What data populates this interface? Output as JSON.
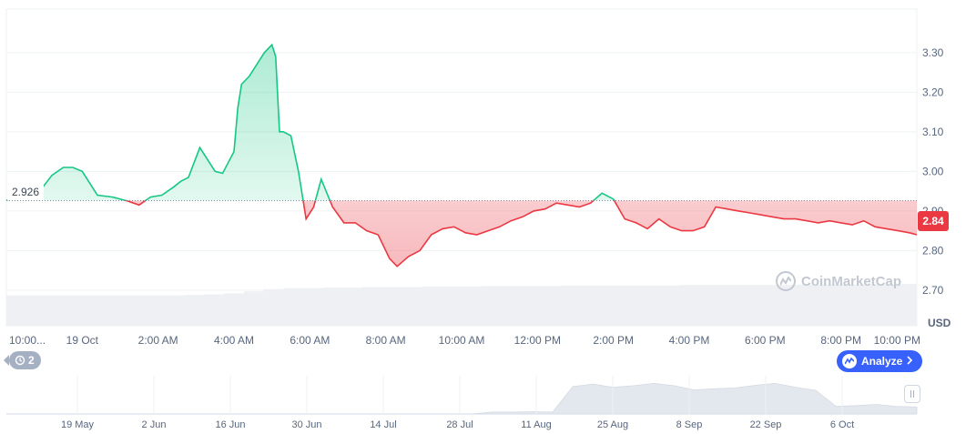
{
  "chart_data": {
    "type": "area",
    "reference_label": "2.926",
    "reference_value": 2.926,
    "current_price_label": "2.84",
    "currency_label": "USD",
    "y_ticks": [
      "3.30",
      "3.20",
      "3.10",
      "3.00",
      "2.90",
      "2.80",
      "2.70"
    ],
    "ylim": [
      2.61,
      3.41
    ],
    "x_ticks": [
      "10:00...",
      "19 Oct",
      "2:00 AM",
      "4:00 AM",
      "6:00 AM",
      "8:00 AM",
      "10:00 AM",
      "12:00 PM",
      "2:00 PM",
      "4:00 PM",
      "6:00 PM",
      "8:00 PM",
      "10:00 PM"
    ],
    "x_tick_hours": [
      0,
      2,
      4,
      6,
      8,
      10,
      12,
      14,
      16,
      18,
      20,
      22,
      24
    ],
    "xlim_hours": [
      0.0,
      24.0
    ],
    "up_color": "#16c784",
    "down_color": "#ea3943",
    "series": [
      {
        "x_hours": [
          0.0,
          0.4,
          0.8,
          1.2,
          1.5,
          1.75,
          2.0,
          2.4,
          2.8,
          3.2,
          3.5,
          3.8,
          4.1,
          4.4,
          4.6,
          4.8,
          5.1,
          5.5,
          5.7,
          6.0,
          6.1,
          6.2,
          6.4,
          6.6,
          6.8,
          7.0,
          7.1,
          7.2,
          7.3,
          7.5,
          7.7,
          7.9,
          8.1,
          8.3,
          8.6,
          8.9,
          9.2,
          9.5,
          9.8,
          10.1,
          10.3,
          10.6,
          10.9,
          11.2,
          11.5,
          11.8,
          12.1,
          12.4,
          12.7,
          13.0,
          13.3,
          13.6,
          13.9,
          14.2,
          14.5,
          14.8,
          15.1,
          15.4,
          15.7,
          16.0,
          16.3,
          16.6,
          16.9,
          17.2,
          17.5,
          17.8,
          18.1,
          18.4,
          18.7,
          19.0,
          19.3,
          19.6,
          19.9,
          20.2,
          20.5,
          20.8,
          21.1,
          21.4,
          21.7,
          22.0,
          22.3,
          22.6,
          22.9,
          23.2,
          23.5,
          23.8,
          24.0
        ],
        "y": [
          2.926,
          2.95,
          2.94,
          2.99,
          3.01,
          3.01,
          3.0,
          2.94,
          2.935,
          2.925,
          2.915,
          2.935,
          2.94,
          2.96,
          2.975,
          2.985,
          3.06,
          3.0,
          2.995,
          3.05,
          3.16,
          3.22,
          3.24,
          3.27,
          3.3,
          3.32,
          3.29,
          3.1,
          3.1,
          3.09,
          3.0,
          2.88,
          2.91,
          2.98,
          2.91,
          2.87,
          2.87,
          2.85,
          2.84,
          2.78,
          2.76,
          2.785,
          2.8,
          2.84,
          2.855,
          2.86,
          2.845,
          2.84,
          2.85,
          2.86,
          2.875,
          2.885,
          2.9,
          2.905,
          2.92,
          2.915,
          2.91,
          2.92,
          2.945,
          2.93,
          2.88,
          2.87,
          2.855,
          2.88,
          2.86,
          2.85,
          2.85,
          2.86,
          2.91,
          2.905,
          2.9,
          2.895,
          2.89,
          2.885,
          2.88,
          2.88,
          2.875,
          2.87,
          2.875,
          2.87,
          2.865,
          2.875,
          2.86,
          2.855,
          2.85,
          2.845,
          2.84
        ]
      }
    ],
    "volume_relative": [
      0.58,
      0.58,
      0.58,
      0.58,
      0.58,
      0.58,
      0.58,
      0.58,
      0.58,
      0.59,
      0.6,
      0.62,
      0.66,
      0.7,
      0.72,
      0.72,
      0.73,
      0.73,
      0.74,
      0.74,
      0.74,
      0.75,
      0.75,
      0.75,
      0.76,
      0.76,
      0.76,
      0.76,
      0.77,
      0.77,
      0.77,
      0.77,
      0.77,
      0.77,
      0.78,
      0.78,
      0.78,
      0.78,
      0.78,
      0.78,
      0.79,
      0.79,
      0.79,
      0.79,
      0.79,
      0.8
    ],
    "navigator": {
      "labels": [
        "19 May",
        "2 Jun",
        "16 Jun",
        "30 Jun",
        "14 Jul",
        "28 Jul",
        "11 Aug",
        "25 Aug",
        "8 Sep",
        "22 Sep",
        "6 Oct"
      ],
      "values": [
        0.0,
        0.0,
        0.0,
        0.0,
        0.0,
        0.0,
        0.0,
        0.0,
        0.0,
        0.0,
        0.0,
        0.0,
        0.0,
        0.0,
        0.0,
        0.0,
        0.0,
        0.0,
        0.0,
        0.0,
        0.0,
        0.0,
        0.0,
        0.0,
        0.05,
        0.05,
        0.06,
        0.05,
        0.72,
        0.78,
        0.7,
        0.74,
        0.8,
        0.74,
        0.63,
        0.66,
        0.68,
        0.75,
        0.8,
        0.7,
        0.62,
        0.2,
        0.22,
        0.25,
        0.2,
        0.18
      ]
    }
  },
  "overlays": {
    "history_label": "2",
    "analyze_label": "Analyze",
    "watermark_text": "CoinMarketCap"
  }
}
